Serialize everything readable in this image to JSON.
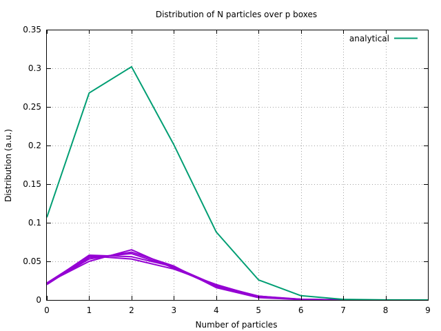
{
  "chart_data": {
    "type": "line",
    "title": "Distribution of N particles over p boxes",
    "xlabel": "Number of particles",
    "ylabel": "Distribution (a.u.)",
    "xlim": [
      0,
      9
    ],
    "ylim": [
      0,
      0.35
    ],
    "x": [
      0,
      1,
      2,
      3,
      4,
      5,
      6,
      7,
      8,
      9
    ],
    "x_tick_labels": [
      "0",
      "1",
      "2",
      "3",
      "4",
      "5",
      "6",
      "7",
      "8",
      "9"
    ],
    "y_ticks": [
      0,
      0.05,
      0.1,
      0.15,
      0.2,
      0.25,
      0.3,
      0.35
    ],
    "y_tick_labels": [
      "0",
      "0.05",
      "0.1",
      "0.15",
      "0.2",
      "0.25",
      "0.3",
      "0.35"
    ],
    "grid": true,
    "legend_position": "top-right",
    "series": [
      {
        "name": "analytical",
        "in_legend": true,
        "color": "#009e73",
        "values": [
          0.107,
          0.268,
          0.302,
          0.201,
          0.088,
          0.026,
          0.0055,
          0.0008,
          0.0001,
          0.0
        ]
      },
      {
        "color": "#9400d3",
        "in_legend": false,
        "values": [
          0.021,
          0.058,
          0.056,
          0.043,
          0.019,
          0.005,
          0.001,
          0.0,
          0.0,
          0.0
        ]
      },
      {
        "color": "#9400d3",
        "in_legend": false,
        "values": [
          0.022,
          0.05,
          0.065,
          0.041,
          0.018,
          0.004,
          0.001,
          0.0,
          0.0,
          0.0
        ]
      },
      {
        "color": "#9400d3",
        "in_legend": false,
        "values": [
          0.02,
          0.055,
          0.06,
          0.042,
          0.017,
          0.005,
          0.0005,
          0.0,
          0.0,
          0.0
        ]
      },
      {
        "color": "#9400d3",
        "in_legend": false,
        "values": [
          0.022,
          0.057,
          0.053,
          0.04,
          0.02,
          0.004,
          0.001,
          0.0,
          0.0,
          0.0
        ]
      },
      {
        "color": "#9400d3",
        "in_legend": false,
        "values": [
          0.021,
          0.053,
          0.062,
          0.044,
          0.016,
          0.003,
          0.0005,
          0.0,
          0.0,
          0.0
        ]
      }
    ]
  }
}
